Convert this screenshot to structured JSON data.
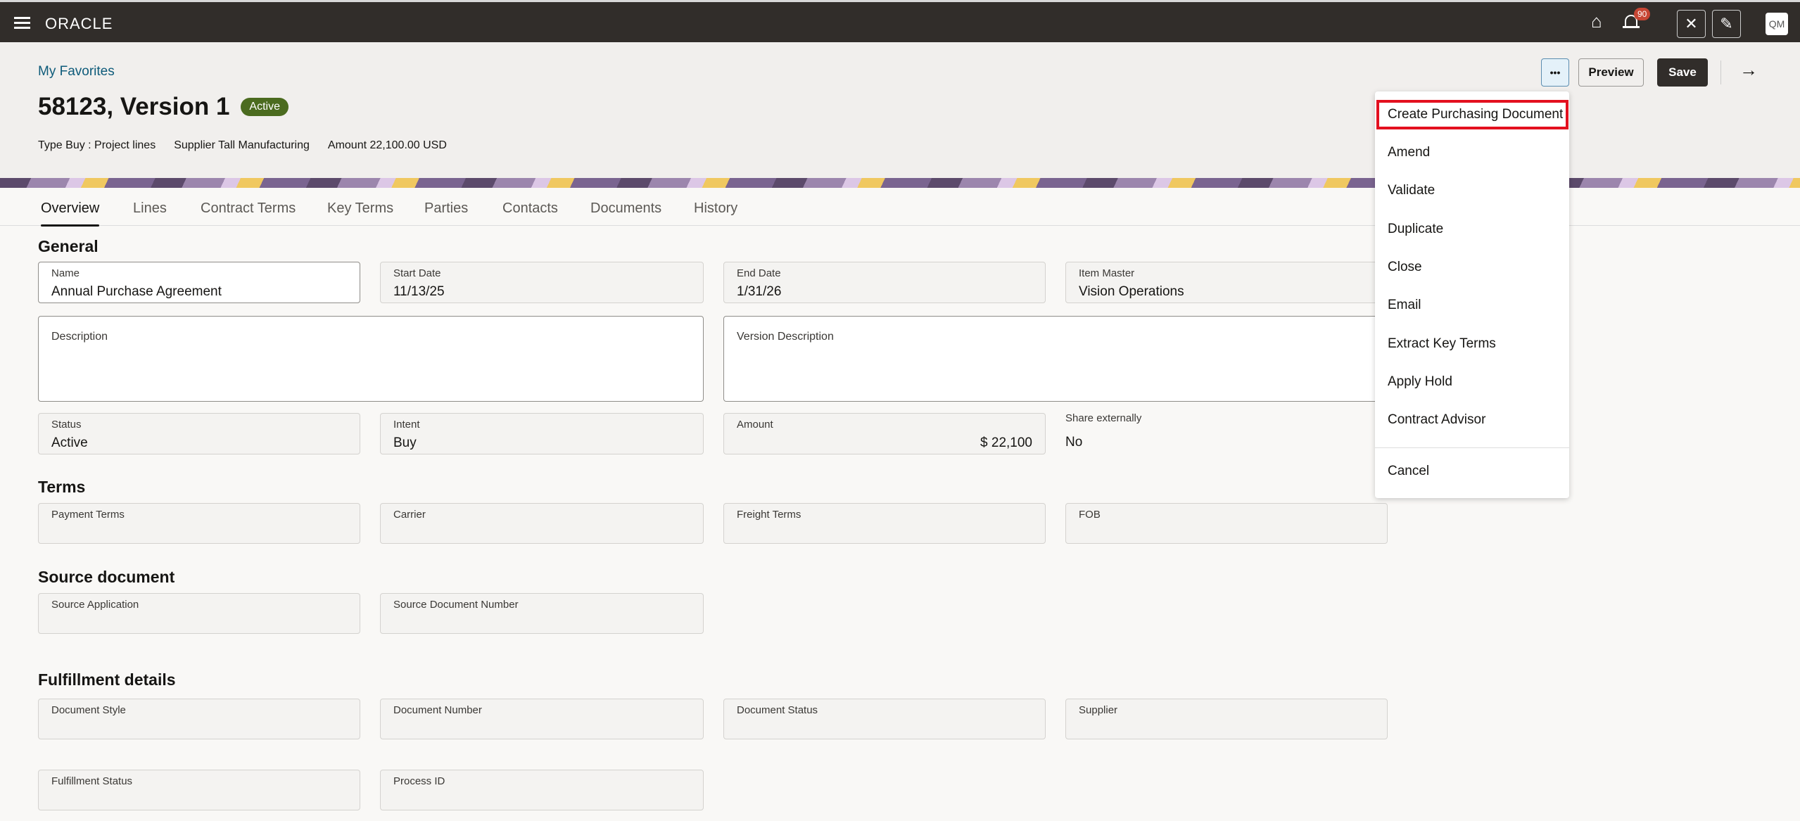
{
  "header": {
    "logo": "ORACLE",
    "notification_count": "90",
    "avatar": "QM",
    "icons": [
      "menu-icon",
      "home-icon",
      "bell-icon",
      "accessibility-off-icon",
      "pen-off-icon"
    ]
  },
  "page": {
    "breadcrumb": "My Favorites",
    "title": "58123, Version 1",
    "status": "Active",
    "status_color": "#4b6b1f",
    "meta": {
      "type_label": "Type",
      "type_value": "Buy : Project lines",
      "supplier_label": "Supplier",
      "supplier_value": "Tall Manufacturing",
      "amount_label": "Amount",
      "amount_value": "22,100.00 USD"
    }
  },
  "actions": {
    "more": "•••",
    "preview": "Preview",
    "save": "Save",
    "forward": "→"
  },
  "tabs": [
    "Overview",
    "Lines",
    "Contract Terms",
    "Key Terms",
    "Parties",
    "Contacts",
    "Documents",
    "History"
  ],
  "general": {
    "heading": "General",
    "fields": [
      {
        "label": "Name",
        "value": "Annual Purchase Agreement"
      },
      {
        "label": "Start Date",
        "value": "11/13/25"
      },
      {
        "label": "End Date",
        "value": "1/31/26"
      },
      {
        "label": "Item Master",
        "value": "Vision Operations"
      },
      {
        "label": "Description",
        "value": ""
      },
      {
        "label": "Version Description",
        "value": ""
      },
      {
        "label": "Status",
        "value": "Active"
      },
      {
        "label": "Intent",
        "value": "Buy"
      },
      {
        "label": "Amount",
        "value": "$ 22,100"
      },
      {
        "label": "Share externally",
        "value": "No"
      }
    ]
  },
  "terms": {
    "heading": "Terms",
    "fields": [
      "Payment Terms",
      "Carrier",
      "Freight Terms",
      "FOB"
    ]
  },
  "source": {
    "heading": "Source document",
    "fields": [
      "Source Application",
      "Source Document Number"
    ]
  },
  "fulfillment": {
    "heading": "Fulfillment details",
    "fields": [
      "Document Style",
      "Document Number",
      "Document Status",
      "Supplier",
      "Fulfillment Status",
      "Process ID"
    ]
  },
  "menu": {
    "items": [
      "Create Purchasing Document",
      "Amend",
      "Validate",
      "Duplicate",
      "Close",
      "Email",
      "Extract Key Terms",
      "Apply Hold",
      "Contract Advisor",
      "Cancel"
    ],
    "highlighted": "Create Purchasing Document",
    "highlight_color": "#e3101f"
  }
}
